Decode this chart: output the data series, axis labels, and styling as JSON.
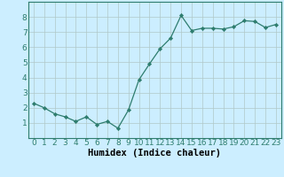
{
  "x": [
    0,
    1,
    2,
    3,
    4,
    5,
    6,
    7,
    8,
    9,
    10,
    11,
    12,
    13,
    14,
    15,
    16,
    17,
    18,
    19,
    20,
    21,
    22,
    23
  ],
  "y": [
    2.3,
    2.0,
    1.6,
    1.4,
    1.1,
    1.4,
    0.9,
    1.1,
    0.65,
    1.85,
    3.85,
    4.9,
    5.9,
    6.6,
    8.1,
    7.1,
    7.25,
    7.25,
    7.2,
    7.35,
    7.75,
    7.7,
    7.3,
    7.5
  ],
  "line_color": "#2e7d6e",
  "marker": "D",
  "marker_size": 2.2,
  "bg_color": "#cceeff",
  "grid_color": "#b0c8c8",
  "xlabel": "Humidex (Indice chaleur)",
  "xlim": [
    -0.5,
    23.5
  ],
  "ylim": [
    0,
    9
  ],
  "yticks": [
    1,
    2,
    3,
    4,
    5,
    6,
    7,
    8
  ],
  "xticks": [
    0,
    1,
    2,
    3,
    4,
    5,
    6,
    7,
    8,
    9,
    10,
    11,
    12,
    13,
    14,
    15,
    16,
    17,
    18,
    19,
    20,
    21,
    22,
    23
  ],
  "xlabel_fontsize": 7.5,
  "tick_fontsize": 6.5,
  "axis_color": "#2e7d6e",
  "spine_color": "#2e7d6e"
}
